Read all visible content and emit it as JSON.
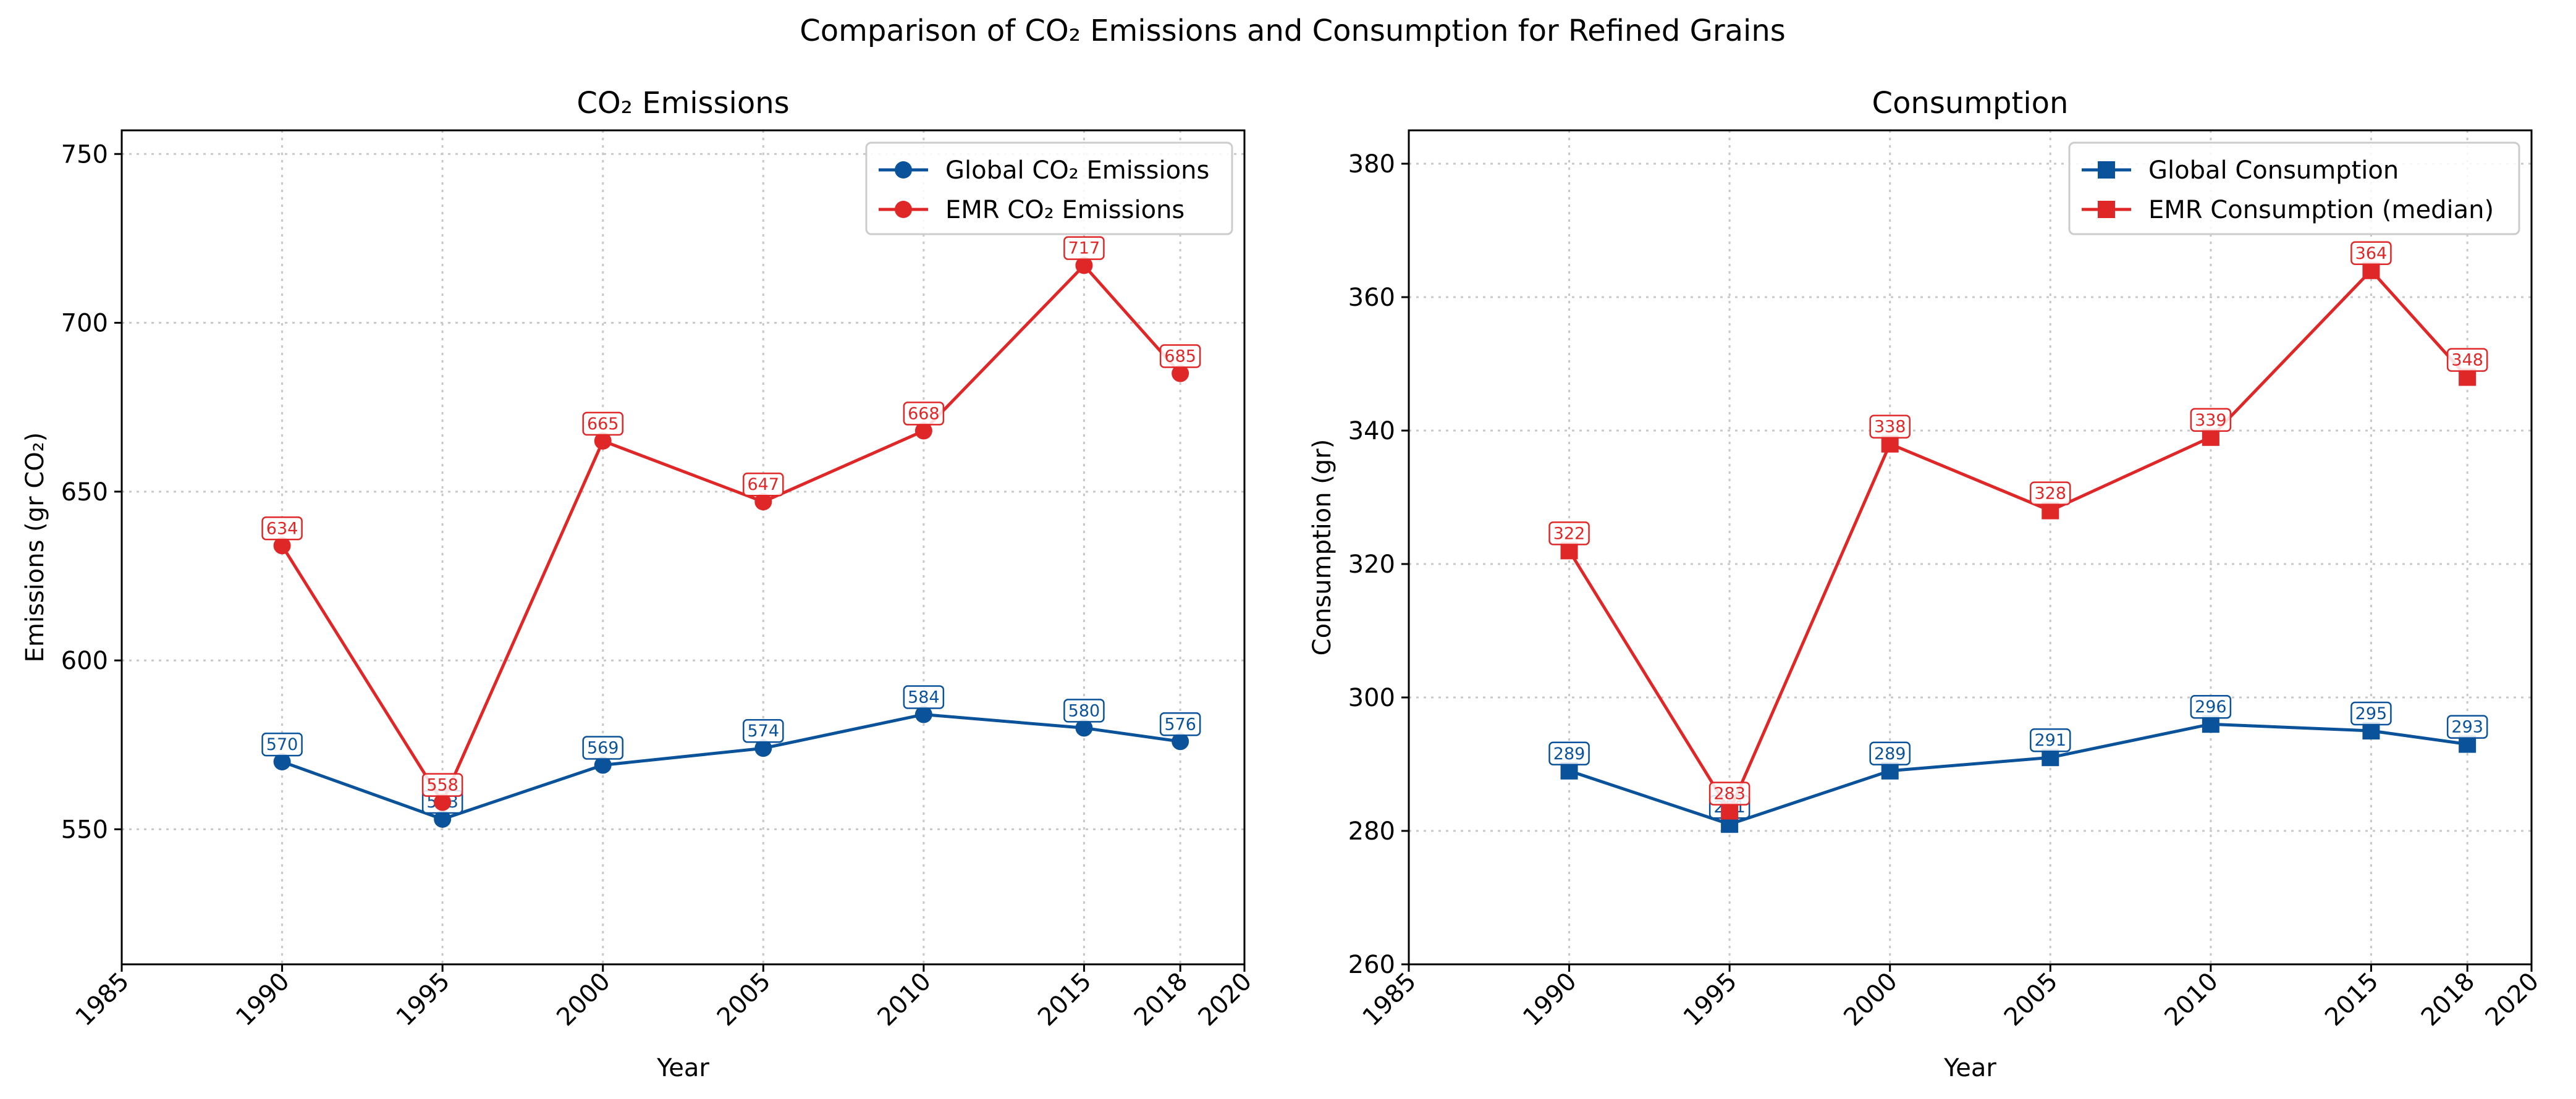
{
  "figure": {
    "title": "Comparison of CO₂ Emissions and Consumption for Refined Grains"
  },
  "colors": {
    "global": "#0a529a",
    "emr": "#e02727"
  },
  "chart_data": [
    {
      "type": "line",
      "title": "CO₂ Emissions",
      "xlabel": "Year",
      "ylabel": "Emissions (gr CO₂)",
      "xlim": [
        1985,
        2020
      ],
      "ylim": [
        510,
        757
      ],
      "xticks": [
        1985,
        1990,
        1995,
        2000,
        2005,
        2010,
        2015,
        2018,
        2020
      ],
      "yticks": [
        550,
        600,
        650,
        700,
        750
      ],
      "grid": true,
      "legend_position": "top-right",
      "marker": "circle",
      "x": [
        1990,
        1995,
        2000,
        2005,
        2010,
        2015,
        2018
      ],
      "series": [
        {
          "name": "Global CO₂ Emissions",
          "color": "#0a529a",
          "values": [
            570,
            553,
            569,
            574,
            584,
            580,
            576
          ]
        },
        {
          "name": "EMR CO₂ Emissions",
          "color": "#e02727",
          "values": [
            634,
            558,
            665,
            647,
            668,
            717,
            685
          ]
        }
      ]
    },
    {
      "type": "line",
      "title": "Consumption",
      "xlabel": "Year",
      "ylabel": "Consumption (gr)",
      "xlim": [
        1985,
        2020
      ],
      "ylim": [
        260,
        385
      ],
      "xticks": [
        1985,
        1990,
        1995,
        2000,
        2005,
        2010,
        2015,
        2018,
        2020
      ],
      "yticks": [
        260,
        280,
        300,
        320,
        340,
        360,
        380
      ],
      "grid": true,
      "legend_position": "top-right",
      "marker": "square",
      "x": [
        1990,
        1995,
        2000,
        2005,
        2010,
        2015,
        2018
      ],
      "series": [
        {
          "name": "Global Consumption",
          "color": "#0a529a",
          "values": [
            289,
            281,
            289,
            291,
            296,
            295,
            293
          ]
        },
        {
          "name": "EMR Consumption (median)",
          "color": "#e02727",
          "values": [
            322,
            283,
            338,
            328,
            339,
            364,
            348
          ]
        }
      ]
    }
  ]
}
